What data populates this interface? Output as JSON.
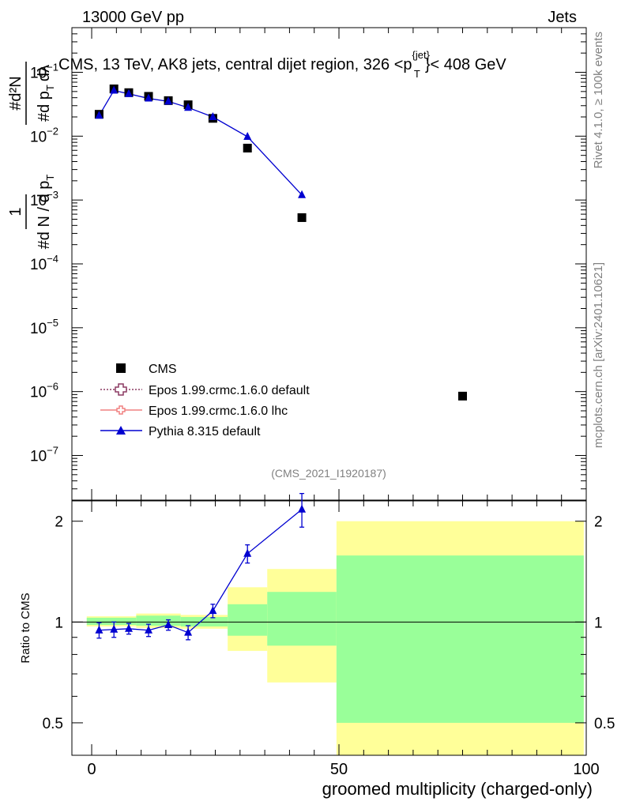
{
  "header": {
    "left": "13000 GeV pp",
    "right": "Jets",
    "plot_title": "CMS, 13 TeV, AK8 jets, central dijet region, 326 <p",
    "plot_title_sup": "{jet}",
    "plot_title_sub": "T",
    "plot_title_end": "}< 408 GeV",
    "side_label_top": "Rivet 4.1.0, ≥ 100k events",
    "side_label_bottom": "mcplots.cern.ch [arXiv:2401.10621]",
    "analysis_id": "(CMS_2021_I1920187)"
  },
  "colors": {
    "cms": "#000000",
    "epos_default": "#8b3a62",
    "epos_lhc": "#f08080",
    "pythia": "#0000d0",
    "band_outer": "#ffff99",
    "band_inner": "#99ff99"
  },
  "chart_data": [
    {
      "type": "scatter",
      "panel": "main",
      "ylabel_parts": [
        "1",
        "#",
        "d N / d p",
        "T",
        "#",
        "d p",
        "T",
        "dλ",
        "#",
        "d²N"
      ],
      "ylog": true,
      "ylim": [
        2e-08,
        0.5
      ],
      "xlim": [
        -4,
        100
      ],
      "yticks": [
        {
          "value": 0.1,
          "label": "10",
          "exp": "−1"
        },
        {
          "value": 0.01,
          "label": "10",
          "exp": "−2"
        },
        {
          "value": 0.001,
          "label": "10",
          "exp": "−3"
        },
        {
          "value": 0.0001,
          "label": "10",
          "exp": "−4"
        },
        {
          "value": 1e-05,
          "label": "10",
          "exp": "−5"
        },
        {
          "value": 1e-06,
          "label": "10",
          "exp": "−6"
        },
        {
          "value": 1e-07,
          "label": "10",
          "exp": "−7"
        }
      ],
      "series": [
        {
          "name": "CMS",
          "marker": "square",
          "x": [
            1.5,
            4.5,
            7.5,
            11.5,
            15.5,
            19.5,
            24.5,
            31.5,
            42.5,
            75.0
          ],
          "y": [
            0.022,
            0.055,
            0.048,
            0.042,
            0.036,
            0.031,
            0.019,
            0.0065,
            0.00053,
            8.5e-07
          ]
        },
        {
          "name": "Epos 1.99.crmc.1.6.0 default",
          "marker": "open-cross",
          "x": [],
          "y": []
        },
        {
          "name": "Epos 1.99.crmc.1.6.0 lhc",
          "marker": "open-cross",
          "x": [],
          "y": []
        },
        {
          "name": "Pythia 8.315 default",
          "marker": "triangle",
          "x": [
            1.5,
            4.5,
            7.5,
            11.5,
            15.5,
            19.5,
            24.5,
            31.5,
            42.5
          ],
          "y": [
            0.021,
            0.052,
            0.046,
            0.039,
            0.035,
            0.028,
            0.02,
            0.0098,
            0.0012
          ]
        }
      ],
      "legend": [
        "CMS",
        "Epos 1.99.crmc.1.6.0 default",
        "Epos 1.99.crmc.1.6.0 lhc",
        "Pythia 8.315 default"
      ]
    },
    {
      "type": "scatter",
      "panel": "ratio",
      "ylabel": "Ratio to CMS",
      "xlabel": "groomed multiplicity (charged-only)",
      "ylog": true,
      "ylim": [
        0.4,
        2.3
      ],
      "xlim": [
        -4,
        100
      ],
      "xticks": [
        0,
        50,
        100
      ],
      "yticks": [
        0.5,
        1,
        2
      ],
      "bands": [
        {
          "x0": -1,
          "x1": 9,
          "outer": [
            0.97,
            1.04
          ],
          "inner": [
            0.98,
            1.03
          ]
        },
        {
          "x0": 9,
          "x1": 18,
          "outer": [
            0.96,
            1.06
          ],
          "inner": [
            0.975,
            1.045
          ]
        },
        {
          "x0": 18,
          "x1": 27.5,
          "outer": [
            0.955,
            1.05
          ],
          "inner": [
            0.97,
            1.035
          ]
        },
        {
          "x0": 27.5,
          "x1": 35.5,
          "outer": [
            0.82,
            1.27
          ],
          "inner": [
            0.91,
            1.13
          ]
        },
        {
          "x0": 35.5,
          "x1": 49.5,
          "outer": [
            0.66,
            1.44
          ],
          "inner": [
            0.85,
            1.23
          ]
        },
        {
          "x0": 49.5,
          "x1": 99.5,
          "outer": [
            0.4,
            2.0
          ],
          "inner": [
            0.5,
            1.58
          ]
        }
      ],
      "series": [
        {
          "name": "Pythia 8.315 default",
          "x": [
            1.5,
            4.5,
            7.5,
            11.5,
            15.5,
            19.5,
            24.5,
            31.5,
            42.5
          ],
          "y": [
            0.945,
            0.95,
            0.955,
            0.945,
            0.98,
            0.93,
            1.08,
            1.6,
            2.17
          ],
          "err": [
            0.05,
            0.05,
            0.035,
            0.04,
            0.035,
            0.045,
            0.05,
            0.1,
            0.25
          ]
        }
      ]
    }
  ]
}
